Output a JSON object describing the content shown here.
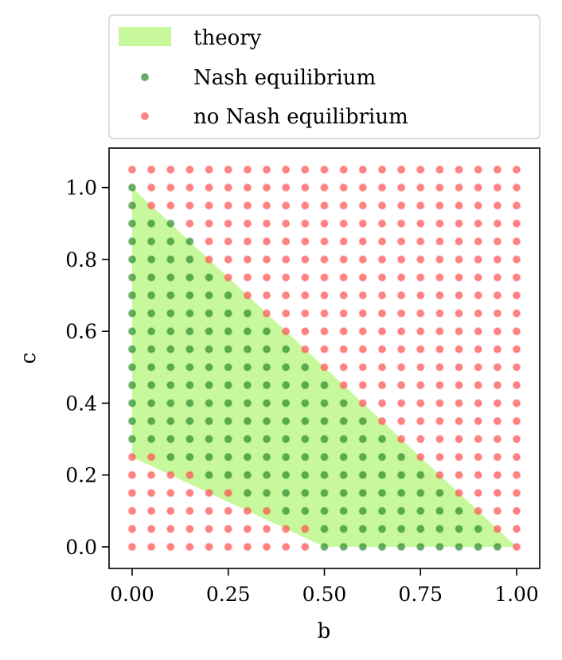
{
  "chart_data": {
    "type": "scatter",
    "title": "",
    "xlabel": "b",
    "ylabel": "c",
    "xlim": [
      -0.06,
      1.06
    ],
    "ylim": [
      -0.06,
      1.11
    ],
    "xticks": [
      0.0,
      0.25,
      0.5,
      0.75,
      1.0
    ],
    "xtick_labels": [
      "0.00",
      "0.25",
      "0.50",
      "0.75",
      "1.00"
    ],
    "yticks": [
      0.0,
      0.2,
      0.4,
      0.6,
      0.8,
      1.0
    ],
    "ytick_labels": [
      "0.0",
      "0.2",
      "0.4",
      "0.6",
      "0.8",
      "1.0"
    ],
    "grid": false,
    "legend_placement": "above",
    "grid_points": {
      "b": [
        0,
        0.05,
        0.1,
        0.15,
        0.2,
        0.25,
        0.3,
        0.35,
        0.4,
        0.45,
        0.5,
        0.55,
        0.6,
        0.65,
        0.7,
        0.75,
        0.8,
        0.85,
        0.9,
        0.95,
        1.0
      ],
      "c": [
        0,
        0.05,
        0.1,
        0.15,
        0.2,
        0.25,
        0.3,
        0.35,
        0.4,
        0.45,
        0.5,
        0.55,
        0.6,
        0.65,
        0.7,
        0.75,
        0.8,
        0.85,
        0.9,
        0.95,
        1.0,
        1.05
      ]
    },
    "series": [
      {
        "name": "theory",
        "kind": "region",
        "color": "#c8f89c",
        "polygon": [
          [
            0,
            1.0
          ],
          [
            1.0,
            0.0
          ],
          [
            0.5,
            0.0
          ],
          [
            0,
            0.25
          ]
        ]
      },
      {
        "name": "Nash equilibrium",
        "kind": "points",
        "color": "#2e8b2e",
        "columns": [
          {
            "b": 0.0,
            "c": [
              0.3,
              0.35,
              0.4,
              0.45,
              0.5,
              0.55,
              0.6,
              0.65,
              0.7,
              0.75,
              0.8,
              0.85,
              0.9,
              0.95,
              1.0
            ]
          },
          {
            "b": 0.05,
            "c": [
              0.3,
              0.35,
              0.4,
              0.45,
              0.5,
              0.55,
              0.6,
              0.65,
              0.7,
              0.75,
              0.8,
              0.85,
              0.9
            ]
          },
          {
            "b": 0.1,
            "c": [
              0.25,
              0.3,
              0.35,
              0.4,
              0.45,
              0.5,
              0.55,
              0.6,
              0.65,
              0.7,
              0.75,
              0.8,
              0.85,
              0.9
            ]
          },
          {
            "b": 0.15,
            "c": [
              0.25,
              0.3,
              0.35,
              0.4,
              0.45,
              0.5,
              0.55,
              0.6,
              0.65,
              0.7,
              0.75,
              0.8,
              0.85
            ]
          },
          {
            "b": 0.2,
            "c": [
              0.2,
              0.25,
              0.3,
              0.35,
              0.4,
              0.45,
              0.5,
              0.55,
              0.6,
              0.65,
              0.7,
              0.75
            ]
          },
          {
            "b": 0.25,
            "c": [
              0.2,
              0.25,
              0.3,
              0.35,
              0.4,
              0.45,
              0.5,
              0.55,
              0.6,
              0.65,
              0.7
            ]
          },
          {
            "b": 0.3,
            "c": [
              0.15,
              0.2,
              0.25,
              0.3,
              0.35,
              0.4,
              0.45,
              0.5,
              0.55,
              0.6,
              0.65
            ]
          },
          {
            "b": 0.35,
            "c": [
              0.15,
              0.2,
              0.25,
              0.3,
              0.35,
              0.4,
              0.45,
              0.5,
              0.55,
              0.6
            ]
          },
          {
            "b": 0.4,
            "c": [
              0.1,
              0.15,
              0.2,
              0.25,
              0.3,
              0.35,
              0.4,
              0.45,
              0.5,
              0.55
            ]
          },
          {
            "b": 0.45,
            "c": [
              0.1,
              0.15,
              0.2,
              0.25,
              0.3,
              0.35,
              0.4,
              0.45,
              0.5
            ]
          },
          {
            "b": 0.5,
            "c": [
              0.0,
              0.05,
              0.1,
              0.15,
              0.2,
              0.25,
              0.3,
              0.35,
              0.4,
              0.45
            ]
          },
          {
            "b": 0.55,
            "c": [
              0.0,
              0.05,
              0.1,
              0.15,
              0.2,
              0.25,
              0.3,
              0.35,
              0.4
            ]
          },
          {
            "b": 0.6,
            "c": [
              0.0,
              0.05,
              0.1,
              0.15,
              0.2,
              0.25,
              0.3,
              0.35
            ]
          },
          {
            "b": 0.65,
            "c": [
              0.0,
              0.05,
              0.1,
              0.15,
              0.2,
              0.25,
              0.3
            ]
          },
          {
            "b": 0.7,
            "c": [
              0.0,
              0.05,
              0.1,
              0.15,
              0.2,
              0.25
            ]
          },
          {
            "b": 0.75,
            "c": [
              0.0,
              0.05,
              0.1,
              0.15,
              0.2
            ]
          },
          {
            "b": 0.8,
            "c": [
              0.0,
              0.05,
              0.1,
              0.15
            ]
          },
          {
            "b": 0.85,
            "c": [
              0.0,
              0.05,
              0.1
            ]
          },
          {
            "b": 0.9,
            "c": [
              0.0,
              0.05
            ]
          },
          {
            "b": 0.95,
            "c": [
              0.0
            ]
          },
          {
            "b": 1.0,
            "c": []
          }
        ]
      },
      {
        "name": "no Nash equilibrium",
        "kind": "points",
        "color": "#ff5050",
        "rule": "every grid point (b, c) not listed under Nash equilibrium"
      }
    ]
  }
}
